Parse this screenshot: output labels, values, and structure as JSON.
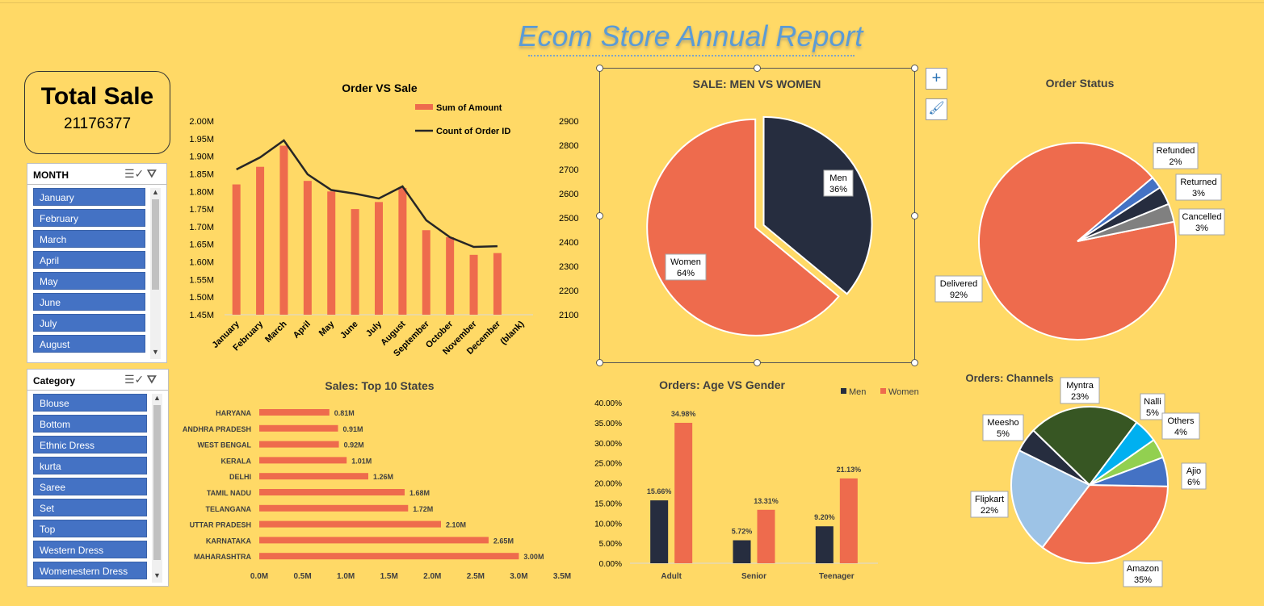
{
  "report_title": "Ecom Store Annual Report",
  "total_sale": {
    "label": "Total Sale",
    "value": "21176377"
  },
  "month_slicer": {
    "header": "MONTH",
    "items": [
      "January",
      "February",
      "March",
      "April",
      "May",
      "June",
      "July",
      "August"
    ]
  },
  "category_slicer": {
    "header": "Category",
    "items": [
      "Blouse",
      "Bottom",
      "Ethnic Dress",
      "kurta",
      "Saree",
      "Set",
      "Top",
      "Western Dress",
      "Womenestern Dress"
    ]
  },
  "icons": {
    "multi_select": "multi-select-icon",
    "clear_filter": "clear-filter-icon",
    "chart_elements": "plus-icon",
    "chart_styles": "paintbrush-icon"
  },
  "colors": {
    "background": "#FFD966",
    "orange": "#EE6B4D",
    "navy": "#262D3F",
    "slicer_blue": "#4472C4",
    "title_blue": "#5B9BD5"
  },
  "chart_data": [
    {
      "id": "order_vs_sale",
      "type": "bar",
      "title": "Order VS Sale",
      "categories": [
        "January",
        "February",
        "March",
        "April",
        "May",
        "June",
        "July",
        "August",
        "September",
        "October",
        "November",
        "December",
        "(blank)"
      ],
      "series": [
        {
          "name": "Sum of Amount",
          "type": "bar",
          "axis": "left",
          "values": [
            1.82,
            1.87,
            1.93,
            1.83,
            1.8,
            1.75,
            1.77,
            1.81,
            1.69,
            1.67,
            1.62,
            1.625,
            null
          ]
        },
        {
          "name": "Count of Order ID",
          "type": "line",
          "axis": "right",
          "values": [
            2700,
            2750,
            2820,
            2680,
            2615,
            2600,
            2580,
            2630,
            2490,
            2420,
            2380,
            2383,
            null
          ]
        }
      ],
      "left_axis": {
        "ticks": [
          "2.00M",
          "1.95M",
          "1.90M",
          "1.85M",
          "1.80M",
          "1.75M",
          "1.70M",
          "1.65M",
          "1.60M",
          "1.55M",
          "1.50M",
          "1.45M"
        ],
        "ylim": [
          1.45,
          2.0
        ]
      },
      "right_axis": {
        "ticks": [
          "2900",
          "2800",
          "2700",
          "2600",
          "2500",
          "2400",
          "2300",
          "2200",
          "2100"
        ],
        "ylim": [
          2100,
          2900
        ]
      },
      "legend": "top-right"
    },
    {
      "id": "sale_men_women",
      "type": "pie",
      "title": "SALE: MEN VS WOMEN",
      "slices": [
        {
          "label": "Men",
          "pct": "36%",
          "value": 36,
          "color": "#262D3F"
        },
        {
          "label": "Women",
          "pct": "64%",
          "value": 64,
          "color": "#EE6B4D"
        }
      ]
    },
    {
      "id": "order_status",
      "type": "pie",
      "title": "Order Status",
      "slices": [
        {
          "label": "Delivered",
          "pct": "92%",
          "value": 92,
          "color": "#EE6B4D"
        },
        {
          "label": "Refunded",
          "pct": "2%",
          "value": 2,
          "color": "#4472C4"
        },
        {
          "label": "Returned",
          "pct": "3%",
          "value": 3,
          "color": "#262D3F"
        },
        {
          "label": "Cancelled",
          "pct": "3%",
          "value": 3,
          "color": "#808080"
        }
      ]
    },
    {
      "id": "top_states",
      "type": "bar",
      "orientation": "horizontal",
      "title": "Sales: Top 10 States",
      "categories": [
        "HARYANA",
        "ANDHRA PRADESH",
        "WEST BENGAL",
        "KERALA",
        "DELHI",
        "TAMIL NADU",
        "TELANGANA",
        "UTTAR PRADESH",
        "KARNATAKA",
        "MAHARASHTRA"
      ],
      "values": [
        0.81,
        0.91,
        0.92,
        1.01,
        1.26,
        1.68,
        1.72,
        2.1,
        2.65,
        3.0
      ],
      "value_labels": [
        "0.81M",
        "0.91M",
        "0.92M",
        "1.01M",
        "1.26M",
        "1.68M",
        "1.72M",
        "2.10M",
        "2.65M",
        "3.00M"
      ],
      "xticks": [
        "0.0M",
        "0.5M",
        "1.0M",
        "1.5M",
        "2.0M",
        "2.5M",
        "3.0M",
        "3.5M"
      ],
      "xlim": [
        0,
        3.5
      ]
    },
    {
      "id": "age_vs_gender",
      "type": "bar",
      "title": "Orders: Age VS Gender",
      "categories": [
        "Adult",
        "Senior",
        "Teenager"
      ],
      "series": [
        {
          "name": "Men",
          "values": [
            15.66,
            5.72,
            9.2
          ],
          "labels": [
            "15.66%",
            "5.72%",
            "9.20%"
          ],
          "color": "#262D3F"
        },
        {
          "name": "Women",
          "values": [
            34.98,
            13.31,
            21.13
          ],
          "labels": [
            "34.98%",
            "13.31%",
            "21.13%"
          ],
          "color": "#EE6B4D"
        }
      ],
      "yticks": [
        "40.00%",
        "35.00%",
        "30.00%",
        "25.00%",
        "20.00%",
        "15.00%",
        "10.00%",
        "5.00%",
        "0.00%"
      ],
      "ylim": [
        0,
        40
      ],
      "legend": "top-right"
    },
    {
      "id": "channels",
      "type": "pie",
      "title": "Orders: Channels",
      "slices": [
        {
          "label": "Amazon",
          "pct": "35%",
          "value": 35,
          "color": "#EE6B4D"
        },
        {
          "label": "Flipkart",
          "pct": "22%",
          "value": 22,
          "color": "#9DC3E6"
        },
        {
          "label": "Meesho",
          "pct": "5%",
          "value": 5,
          "color": "#262D3F"
        },
        {
          "label": "Myntra",
          "pct": "23%",
          "value": 23,
          "color": "#375623"
        },
        {
          "label": "Nalli",
          "pct": "5%",
          "value": 5,
          "color": "#00B0F0"
        },
        {
          "label": "Others",
          "pct": "4%",
          "value": 4,
          "color": "#92D050"
        },
        {
          "label": "Ajio",
          "pct": "6%",
          "value": 6,
          "color": "#4472C4"
        }
      ]
    }
  ]
}
